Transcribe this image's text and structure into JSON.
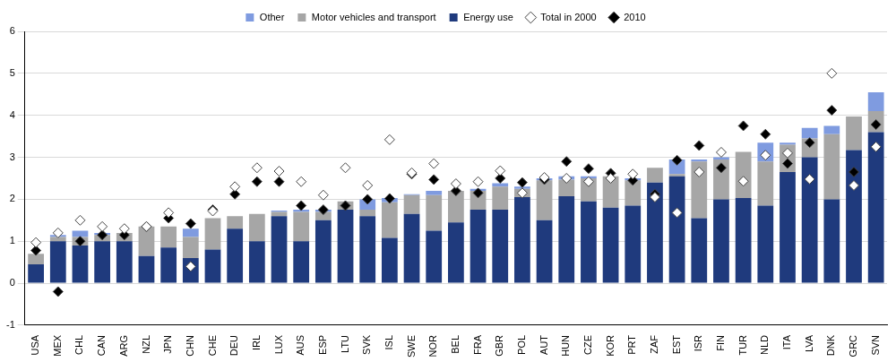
{
  "chart_data": {
    "type": "bar",
    "categories": [
      "USA",
      "MEX",
      "CHL",
      "CAN",
      "ARG",
      "NZL",
      "JPN",
      "CHN",
      "CHE",
      "DEU",
      "IRL",
      "LUX",
      "AUS",
      "ESP",
      "LTU",
      "SVK",
      "ISL",
      "SWE",
      "NOR",
      "BEL",
      "FRA",
      "GBR",
      "POL",
      "AUT",
      "HUN",
      "CZE",
      "KOR",
      "PRT",
      "ZAF",
      "EST",
      "ISR",
      "FIN",
      "TUR",
      "NLD",
      "ITA",
      "LVA",
      "DNK",
      "GRC",
      "SVN"
    ],
    "series": [
      {
        "name": "Other",
        "type": "bar",
        "color": "#7f9be0",
        "values": [
          0,
          0.05,
          0.15,
          0.05,
          0,
          0,
          0,
          0.2,
          0,
          0,
          0,
          0.03,
          0.05,
          0.05,
          0,
          0.25,
          0.1,
          0.02,
          0.1,
          0,
          0.05,
          0.08,
          0.05,
          0.05,
          0.08,
          0.05,
          0,
          0.05,
          0,
          0.35,
          0.05,
          0.05,
          0,
          0.45,
          0.05,
          0.25,
          0.2,
          0,
          0.45
        ]
      },
      {
        "name": "Motor vehicles and transport",
        "type": "bar",
        "color": "#a6a6a6",
        "values": [
          0.25,
          0.1,
          0.2,
          0.15,
          0.2,
          0.7,
          0.5,
          0.5,
          0.75,
          0.3,
          0.65,
          0.1,
          0.7,
          0.2,
          0.2,
          0.15,
          0.85,
          0.45,
          0.85,
          0.75,
          0.45,
          0.55,
          0.2,
          0.95,
          0.4,
          0.55,
          0.75,
          0.6,
          0.35,
          0.05,
          1.35,
          0.95,
          1.1,
          1.05,
          0.65,
          0.45,
          1.55,
          0.8,
          0.5
        ]
      },
      {
        "name": "Energy use",
        "type": "bar",
        "color": "#1f3a7d",
        "values": [
          0.45,
          1.0,
          0.9,
          1.0,
          1.0,
          0.65,
          0.85,
          0.6,
          0.8,
          1.3,
          1.0,
          1.6,
          1.0,
          1.5,
          1.75,
          1.6,
          1.08,
          1.65,
          1.25,
          1.45,
          1.75,
          1.75,
          2.05,
          1.5,
          2.07,
          1.95,
          1.8,
          1.85,
          2.4,
          2.55,
          1.55,
          2.0,
          2.03,
          1.85,
          2.65,
          3.0,
          2.0,
          3.17,
          3.6
        ]
      },
      {
        "name": "Total in 2000",
        "type": "scatter",
        "marker": "diamond",
        "color": "#ffffff",
        "values": [
          0.97,
          1.2,
          1.5,
          1.35,
          1.3,
          1.35,
          1.68,
          0.4,
          1.72,
          2.3,
          2.75,
          2.67,
          2.42,
          2.1,
          2.75,
          2.33,
          3.42,
          2.63,
          2.85,
          2.37,
          2.42,
          2.68,
          2.15,
          2.52,
          2.5,
          2.42,
          2.5,
          2.6,
          2.05,
          1.68,
          2.65,
          3.12,
          2.43,
          3.05,
          3.1,
          2.48,
          5.0,
          2.33,
          3.25
        ]
      },
      {
        "name": "2010",
        "type": "scatter",
        "marker": "diamond",
        "color": "#000000",
        "values": [
          0.78,
          -0.2,
          1.0,
          1.15,
          1.15,
          1.35,
          1.55,
          1.42,
          1.75,
          2.12,
          2.42,
          2.42,
          1.85,
          1.75,
          1.85,
          2.0,
          2.02,
          2.6,
          2.47,
          2.2,
          2.15,
          2.5,
          2.4,
          2.47,
          2.9,
          2.73,
          2.62,
          2.45,
          2.12,
          2.93,
          3.28,
          2.75,
          3.75,
          3.55,
          2.85,
          3.35,
          4.12,
          2.65,
          3.78
        ]
      }
    ],
    "stacked": true,
    "ylim": [
      -1,
      6
    ],
    "yticks": [
      -1,
      0,
      1,
      2,
      3,
      4,
      5,
      6
    ],
    "grid": true,
    "legend": "top"
  }
}
